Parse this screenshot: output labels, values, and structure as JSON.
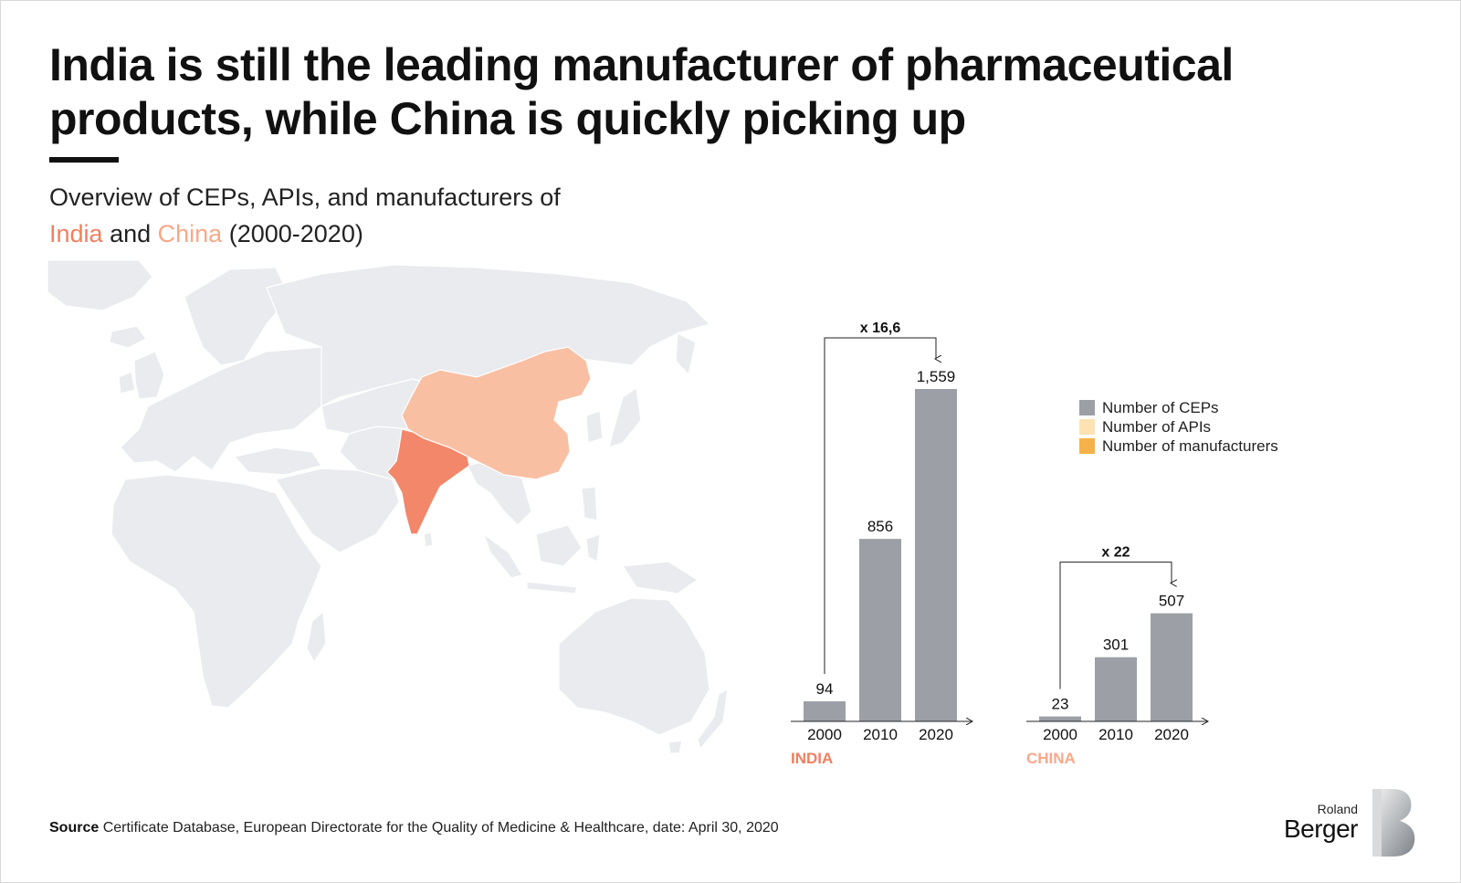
{
  "header": {
    "title_line1": "India is still the leading manufacturer of pharmaceutical",
    "title_line2": "products, while China is quickly picking up",
    "subtitle_line1": "Overview of CEPs, APIs, and manufacturers of",
    "subtitle_india": "India",
    "subtitle_and": "and",
    "subtitle_china": "China",
    "subtitle_tail": "(2000-2020)"
  },
  "map": {
    "highlighted_countries": [
      "India",
      "China"
    ],
    "colors": {
      "land": "#e9ebee",
      "india": "#f2876a",
      "china": "#f9bfa3"
    }
  },
  "legend": {
    "items": [
      {
        "label": "Number of CEPs",
        "color": "#9ca0a6"
      },
      {
        "label": "Number of APIs",
        "color": "#fde3b4"
      },
      {
        "label": "Number of manufacturers",
        "color": "#f5b24a"
      }
    ]
  },
  "chart_data": [
    {
      "type": "bar",
      "group_label": "INDIA",
      "categories": [
        "2000",
        "2010",
        "2020"
      ],
      "series": [
        {
          "name": "Number of CEPs",
          "values": [
            94,
            856,
            1559
          ]
        }
      ],
      "value_labels": [
        "94",
        "856",
        "1,559"
      ],
      "growth_label": "x 16,6",
      "label_color": "#f08060",
      "bar_color": "#9ca0a6"
    },
    {
      "type": "bar",
      "group_label": "CHINA",
      "categories": [
        "2000",
        "2010",
        "2020"
      ],
      "series": [
        {
          "name": "Number of CEPs",
          "values": [
            23,
            301,
            507
          ]
        }
      ],
      "value_labels": [
        "23",
        "301",
        "507"
      ],
      "growth_label": "x 22",
      "label_color": "#f9a888",
      "bar_color": "#9ca0a6"
    }
  ],
  "footer": {
    "source_label": "Source",
    "source_text": "Certificate Database, European Directorate for the Quality of Medicine & Healthcare, date: April 30, 2020",
    "logo_small": "Roland",
    "logo_big": "Berger"
  }
}
